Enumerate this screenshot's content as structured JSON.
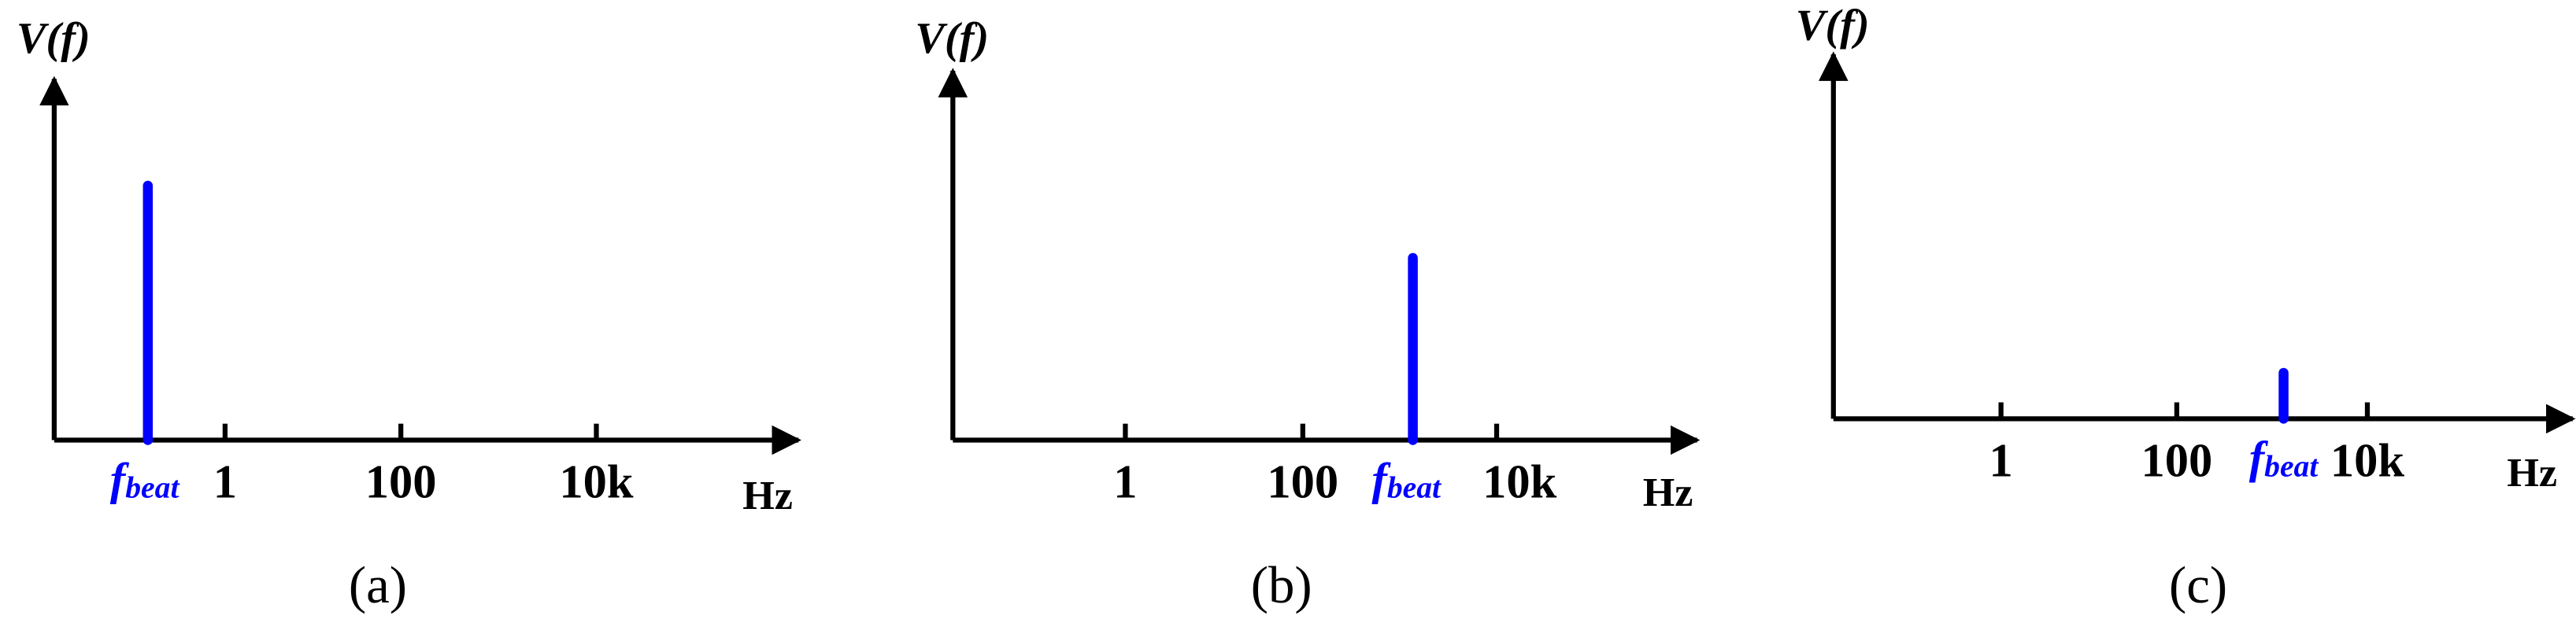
{
  "panels": [
    {
      "y_label": "V(f)",
      "ticks": [
        "1",
        "100",
        "10k"
      ],
      "marker": {
        "symbol": "f",
        "subscript": "beat"
      },
      "unit": "Hz",
      "caption": "(a)"
    },
    {
      "y_label": "V(f)",
      "ticks": [
        "1",
        "100",
        "10k"
      ],
      "marker": {
        "symbol": "f",
        "subscript": "beat"
      },
      "unit": "Hz",
      "caption": "(b)"
    },
    {
      "y_label": "V(f)",
      "ticks": [
        "1",
        "100",
        "10k"
      ],
      "marker": {
        "symbol": "f",
        "subscript": "beat"
      },
      "unit": "Hz",
      "caption": "(c)"
    }
  ]
}
